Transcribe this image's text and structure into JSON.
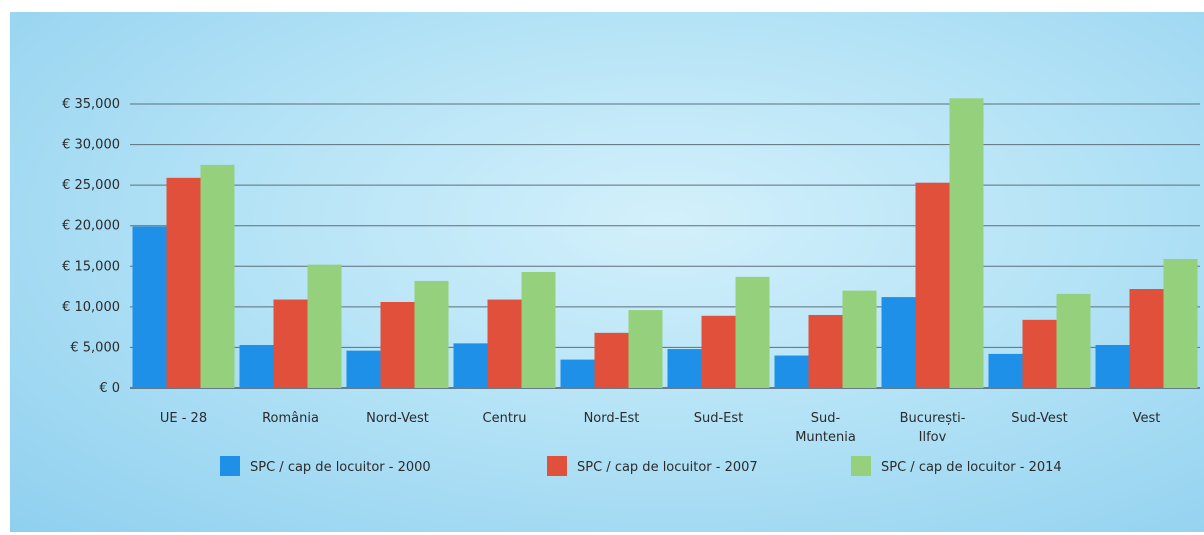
{
  "chart_data": {
    "type": "bar",
    "categories": [
      [
        "UE - 28"
      ],
      [
        "România"
      ],
      [
        "Nord-Vest"
      ],
      [
        "Centru"
      ],
      [
        "Nord-Est"
      ],
      [
        "Sud-Est"
      ],
      [
        "Sud-",
        "Muntenia"
      ],
      [
        "București-",
        "Ilfov"
      ],
      [
        "Sud-Vest"
      ],
      [
        "Vest"
      ]
    ],
    "series": [
      {
        "name": "SPC / cap de locuitor - 2000",
        "color": "#1e90e8",
        "values": [
          19900,
          5300,
          4600,
          5500,
          3500,
          4800,
          4000,
          11200,
          4200,
          5300
        ]
      },
      {
        "name": "SPC / cap de locuitor - 2007",
        "color": "#e0503a",
        "values": [
          25900,
          10900,
          10600,
          10900,
          6800,
          8900,
          9000,
          25300,
          8400,
          12200
        ]
      },
      {
        "name": "SPC / cap de locuitor - 2014",
        "color": "#95d17c",
        "values": [
          27500,
          15200,
          13200,
          14300,
          9600,
          13700,
          12000,
          35700,
          11600,
          15900
        ]
      }
    ],
    "yticks": [
      "€ 0",
      "€ 5,000",
      "€ 10,000",
      "€ 15,000",
      "€ 20,000",
      "€ 25,000",
      "€ 30,000",
      "€ 35,000"
    ],
    "ylim": [
      0,
      35000
    ],
    "grid": true,
    "legend_position": "bottom"
  }
}
